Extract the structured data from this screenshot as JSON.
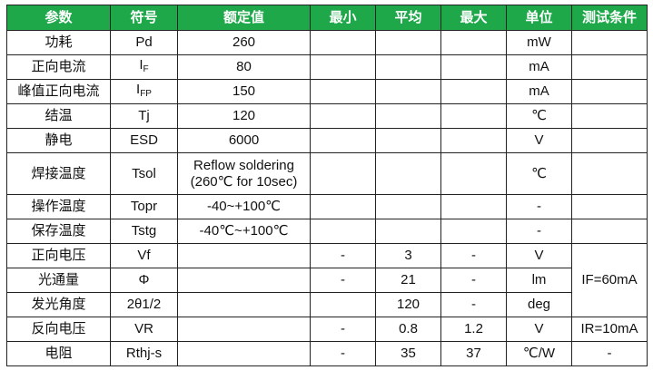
{
  "header_color": "#1ea84a",
  "headers": [
    "参数",
    "符号",
    "额定值",
    "最小",
    "平均",
    "最大",
    "单位",
    "测试条件"
  ],
  "rows": [
    {
      "param": "功耗",
      "symbol": "Pd",
      "rated": "260",
      "min": "",
      "avg": "",
      "max": "",
      "unit": "mW"
    },
    {
      "param": "正向电流",
      "symbol": "I",
      "symbol_sub": "F",
      "rated": "80",
      "min": "",
      "avg": "",
      "max": "",
      "unit": "mA"
    },
    {
      "param": "峰值正向电流",
      "symbol": "I",
      "symbol_sub": "FP",
      "rated": "150",
      "min": "",
      "avg": "",
      "max": "",
      "unit": "mA"
    },
    {
      "param": "结温",
      "symbol": "Tj",
      "rated": "120",
      "min": "",
      "avg": "",
      "max": "",
      "unit": "℃"
    },
    {
      "param": "静电",
      "symbol": "ESD",
      "rated": "6000",
      "min": "",
      "avg": "",
      "max": "",
      "unit": "V"
    },
    {
      "param": "焊接温度",
      "symbol": "Tsol",
      "rated": "Reflow soldering",
      "rated_line2": "(260℃ for 10sec)",
      "min": "",
      "avg": "",
      "max": "",
      "unit": "℃"
    },
    {
      "param": "操作温度",
      "symbol": "Topr",
      "rated": "-40~+100℃",
      "min": "",
      "avg": "",
      "max": "",
      "unit": "-"
    },
    {
      "param": "保存温度",
      "symbol": "Tstg",
      "rated": "-40℃~+100℃",
      "min": "",
      "avg": "",
      "max": "",
      "unit": "-"
    },
    {
      "param": "正向电压",
      "symbol": "Vf",
      "rated": "",
      "min": "-",
      "avg": "3",
      "max": "-",
      "unit": "V"
    },
    {
      "param": "光通量",
      "symbol": "Φ",
      "rated": "",
      "min": "-",
      "avg": "21",
      "max": "-",
      "unit": "lm"
    },
    {
      "param": "发光角度",
      "symbol": "2θ1/2",
      "rated": "",
      "min": "",
      "avg": "120",
      "max": "-",
      "unit": "deg"
    },
    {
      "param": "反向电压",
      "symbol": "VR",
      "rated": "",
      "min": "-",
      "avg": "0.8",
      "max": "1.2",
      "unit": "V"
    },
    {
      "param": "电阻",
      "symbol": "Rthj-s",
      "rated": "",
      "min": "-",
      "avg": "35",
      "max": "37",
      "unit": "℃/W"
    }
  ],
  "conditions": {
    "if": "IF=60mA",
    "ir": "IR=10mA",
    "rth": "-"
  }
}
